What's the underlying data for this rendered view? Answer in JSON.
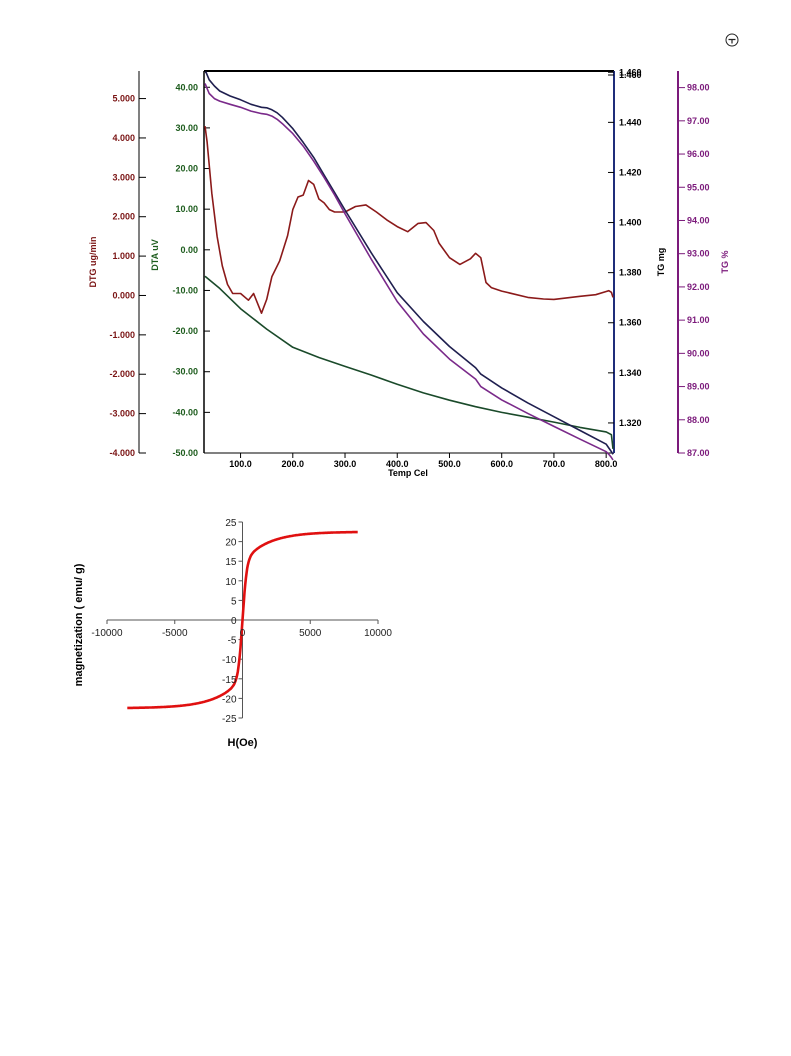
{
  "page_icon": "circle-arrow-icon",
  "chart_data": [
    {
      "type": "line",
      "xlabel": "Temp Cel",
      "xlim": [
        30,
        815
      ],
      "xticks": [
        "100.0",
        "200.0",
        "300.0",
        "400.0",
        "500.0",
        "600.0",
        "700.0",
        "800.0"
      ],
      "axes": {
        "dtg": {
          "label": "DTG ug/min",
          "color": "#7a1414",
          "lim": [
            -4.0,
            5.7
          ],
          "ticks": [
            "5.000",
            "4.000",
            "3.000",
            "2.000",
            "1.000",
            "0.000",
            "-1.000",
            "-2.000",
            "-3.000",
            "-4.000"
          ]
        },
        "dta": {
          "label": "DTA uV",
          "color": "#1d5c1d",
          "lim": [
            -50.0,
            44.0
          ],
          "ticks": [
            "40.00",
            "30.00",
            "20.00",
            "10.00",
            "0.00",
            "-10.00",
            "-20.00",
            "-30.00",
            "-40.00",
            "-50.00"
          ]
        },
        "tgmg": {
          "label": "TG mg",
          "color": "#1f2d7a",
          "lim": [
            1.308,
            1.4605
          ],
          "ticks": [
            "1.460",
            "1.460",
            "1.440",
            "1.420",
            "1.400",
            "1.380",
            "1.360",
            "1.340",
            "1.320"
          ]
        },
        "tgpct": {
          "label": "TG %",
          "color": "#7b1a7b",
          "lim": [
            87.0,
            98.5
          ],
          "ticks": [
            "98.00",
            "97.00",
            "96.00",
            "95.00",
            "94.00",
            "93.00",
            "92.00",
            "91.00",
            "90.00",
            "89.00",
            "88.00",
            "87.00"
          ]
        }
      },
      "series": [
        {
          "axis": "dtg",
          "color": "#8b1a1a",
          "x": [
            32,
            36,
            45,
            55,
            65,
            75,
            85,
            100,
            115,
            125,
            140,
            150,
            160,
            175,
            190,
            200,
            210,
            220,
            230,
            240,
            250,
            260,
            270,
            280,
            290,
            300,
            320,
            340,
            360,
            380,
            400,
            420,
            440,
            455,
            470,
            480,
            500,
            520,
            540,
            550,
            560,
            570,
            580,
            600,
            650,
            680,
            700,
            750,
            780,
            800,
            805,
            810,
            813
          ],
          "y": [
            4.3,
            3.9,
            2.6,
            1.5,
            0.75,
            0.28,
            0.05,
            0.05,
            -0.12,
            0.05,
            -0.45,
            -0.1,
            0.48,
            0.88,
            1.52,
            2.18,
            2.5,
            2.55,
            2.92,
            2.82,
            2.45,
            2.35,
            2.18,
            2.12,
            2.12,
            2.12,
            2.26,
            2.3,
            2.12,
            1.92,
            1.75,
            1.62,
            1.83,
            1.85,
            1.65,
            1.33,
            0.96,
            0.79,
            0.93,
            1.07,
            0.96,
            0.33,
            0.2,
            0.11,
            -0.05,
            -0.09,
            -0.1,
            -0.02,
            0.02,
            0.1,
            0.12,
            0.08,
            -0.05
          ]
        },
        {
          "axis": "dta",
          "color": "#1a4a2a",
          "x": [
            32,
            60,
            100,
            150,
            200,
            250,
            300,
            350,
            400,
            450,
            500,
            550,
            600,
            650,
            700,
            750,
            800,
            810,
            813
          ],
          "y": [
            -6.5,
            -9.5,
            -14.5,
            -19.5,
            -24,
            -26.5,
            -28.7,
            -30.8,
            -33.1,
            -35.2,
            -37.0,
            -38.6,
            -40.0,
            -41.2,
            -42.4,
            -43.7,
            -44.8,
            -45.5,
            -49
          ]
        },
        {
          "axis": "tgmg",
          "color": "#1f1f4f",
          "x": [
            32,
            34,
            36,
            40,
            50,
            60,
            80,
            100,
            120,
            140,
            150,
            160,
            170,
            180,
            200,
            220,
            240,
            260,
            280,
            300,
            350,
            400,
            450,
            500,
            550,
            560,
            600,
            650,
            700,
            750,
            800,
            805,
            810,
            813
          ],
          "y": [
            1.46,
            1.46,
            1.459,
            1.457,
            1.4545,
            1.4525,
            1.4505,
            1.449,
            1.4472,
            1.446,
            1.4458,
            1.445,
            1.4438,
            1.442,
            1.4375,
            1.432,
            1.426,
            1.419,
            1.412,
            1.405,
            1.388,
            1.372,
            1.3605,
            1.3505,
            1.342,
            1.3395,
            1.334,
            1.328,
            1.3225,
            1.317,
            1.3115,
            1.31,
            1.3085,
            1.3075
          ]
        },
        {
          "axis": "tgmg",
          "color": "#7a2a8a",
          "x": [
            32,
            34,
            36,
            40,
            50,
            60,
            80,
            100,
            120,
            140,
            150,
            160,
            170,
            180,
            200,
            220,
            240,
            260,
            280,
            300,
            350,
            400,
            450,
            500,
            550,
            560,
            600,
            650,
            700,
            750,
            800,
            805,
            810,
            813
          ],
          "y": [
            1.4555,
            1.4545,
            1.4535,
            1.4515,
            1.4495,
            1.4485,
            1.4472,
            1.446,
            1.4445,
            1.4435,
            1.4432,
            1.4425,
            1.4412,
            1.4395,
            1.4355,
            1.4305,
            1.4245,
            1.418,
            1.411,
            1.4035,
            1.3855,
            1.3685,
            1.3555,
            1.3455,
            1.3375,
            1.3345,
            1.3292,
            1.3238,
            1.3186,
            1.3135,
            1.3085,
            1.3075,
            1.3062,
            1.3052
          ]
        }
      ]
    },
    {
      "type": "line",
      "xlabel": "H(Oe)",
      "ylabel": "magnetization ( emu/ g)",
      "xlim": [
        -10000,
        10000
      ],
      "ylim": [
        -25,
        25
      ],
      "xticks": [
        "-10000",
        "-5000",
        "0",
        "5000",
        "10000"
      ],
      "yticks": [
        "25",
        "20",
        "15",
        "10",
        "5",
        "0",
        "-5",
        "-10",
        "-15",
        "-20",
        "-25"
      ],
      "series": [
        {
          "color": "#e01010",
          "Ms": 22.5,
          "H0": 300,
          "hmin": -8500,
          "hmax": 8500
        }
      ]
    }
  ]
}
